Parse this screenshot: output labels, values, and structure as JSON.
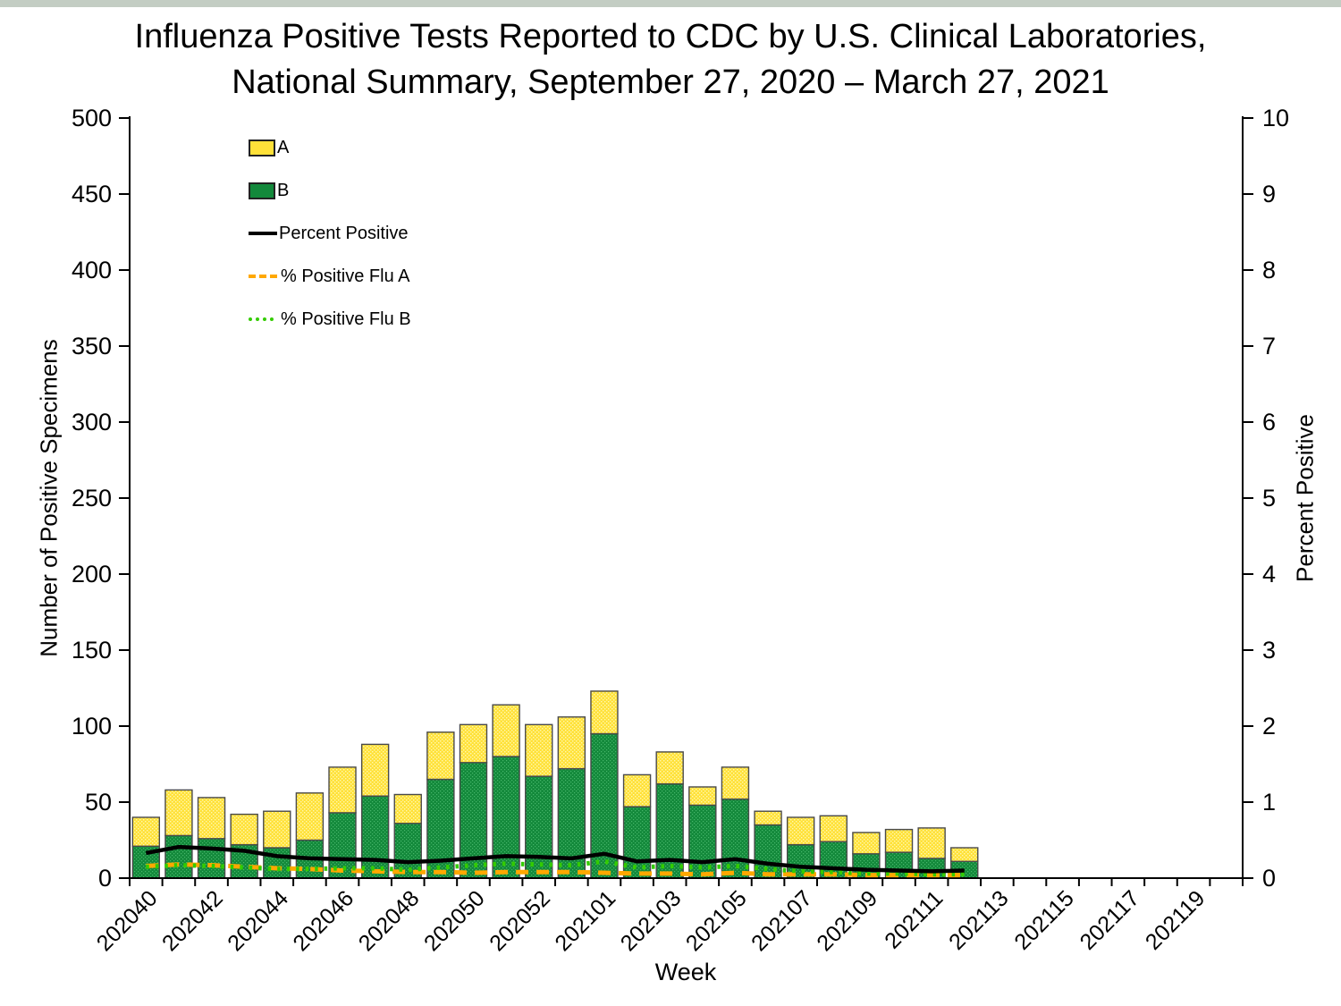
{
  "title": {
    "line1": "Influenza Positive Tests Reported to CDC by U.S. Clinical Laboratories,",
    "line2": "National Summary, September 27, 2020 – March 27, 2021"
  },
  "axes": {
    "y_left_title": "Number of Positive Specimens",
    "y_right_title": "Percent Positive",
    "x_title": "Week",
    "y_left_min": 0,
    "y_left_max": 500,
    "y_left_step": 50,
    "y_right_min": 0,
    "y_right_max": 10,
    "y_right_step": 1
  },
  "legend": {
    "items": [
      {
        "label": "A",
        "swatch": "bar-a"
      },
      {
        "label": "B",
        "swatch": "bar-b"
      },
      {
        "label": "Percent Positive",
        "swatch": "line-black"
      },
      {
        "label": "% Positive Flu A",
        "swatch": "line-orange-dashed"
      },
      {
        "label": "% Positive Flu B",
        "swatch": "line-green-dotted"
      }
    ]
  },
  "colors": {
    "flu_a_bar": "#FFE139",
    "flu_a_bar_dot": "#FFF9B1",
    "flu_b_bar": "#13893B",
    "flu_b_bar_dot": "#46B66B",
    "bar_border": "#4a4a4a",
    "percent_positive_line": "#000000",
    "pct_flu_a_line": "#FFA800",
    "pct_flu_b_line": "#33CC00",
    "axis": "#000000",
    "top_strip": "#c3cdc3"
  },
  "chart_data": {
    "type": "bar",
    "subtype": "stacked-bars-with-percent-lines",
    "categories": [
      "202040",
      "202041",
      "202042",
      "202043",
      "202044",
      "202045",
      "202046",
      "202047",
      "202048",
      "202049",
      "202050",
      "202051",
      "202052",
      "202053",
      "202101",
      "202102",
      "202103",
      "202104",
      "202105",
      "202106",
      "202107",
      "202108",
      "202109",
      "202110",
      "202111",
      "202112"
    ],
    "series": [
      {
        "name": "A",
        "type": "bar",
        "stack": "specimens",
        "axis": "left",
        "values": [
          19,
          30,
          27,
          20,
          24,
          31,
          30,
          34,
          19,
          31,
          25,
          34,
          34,
          34,
          28,
          21,
          21,
          12,
          21,
          9,
          18,
          17,
          14,
          15,
          20,
          9
        ]
      },
      {
        "name": "B",
        "type": "bar",
        "stack": "specimens",
        "axis": "left",
        "values": [
          21,
          28,
          26,
          22,
          20,
          25,
          43,
          54,
          36,
          65,
          76,
          80,
          67,
          72,
          95,
          47,
          62,
          48,
          52,
          35,
          22,
          24,
          16,
          17,
          13,
          11
        ]
      },
      {
        "name": "Percent Positive",
        "type": "line",
        "style": "solid",
        "axis": "right",
        "values": [
          0.33,
          0.41,
          0.39,
          0.36,
          0.29,
          0.26,
          0.25,
          0.24,
          0.21,
          0.23,
          0.26,
          0.29,
          0.28,
          0.26,
          0.32,
          0.22,
          0.24,
          0.21,
          0.25,
          0.19,
          0.15,
          0.13,
          0.11,
          0.1,
          0.09,
          0.1
        ]
      },
      {
        "name": "% Positive Flu A",
        "type": "line",
        "style": "dashed",
        "axis": "right",
        "values": [
          0.16,
          0.18,
          0.17,
          0.15,
          0.13,
          0.12,
          0.1,
          0.09,
          0.08,
          0.08,
          0.07,
          0.08,
          0.08,
          0.08,
          0.07,
          0.06,
          0.06,
          0.05,
          0.07,
          0.05,
          0.05,
          0.05,
          0.04,
          0.04,
          0.04,
          0.04
        ]
      },
      {
        "name": "% Positive Flu B",
        "type": "line",
        "style": "dotted",
        "axis": "right",
        "values": [
          0.15,
          0.17,
          0.16,
          0.14,
          0.12,
          0.12,
          0.13,
          0.13,
          0.11,
          0.14,
          0.17,
          0.19,
          0.18,
          0.17,
          0.22,
          0.14,
          0.16,
          0.14,
          0.16,
          0.12,
          0.09,
          0.08,
          0.06,
          0.06,
          0.05,
          0.05
        ]
      }
    ],
    "x_axis": {
      "total_slots": 34,
      "tick_labels": [
        {
          "slot": 0,
          "text": "202040"
        },
        {
          "slot": 2,
          "text": "202042"
        },
        {
          "slot": 4,
          "text": "202044"
        },
        {
          "slot": 6,
          "text": "202046"
        },
        {
          "slot": 8,
          "text": "202048"
        },
        {
          "slot": 10,
          "text": "202050"
        },
        {
          "slot": 12,
          "text": "202052"
        },
        {
          "slot": 14,
          "text": "202101"
        },
        {
          "slot": 16,
          "text": "202103"
        },
        {
          "slot": 18,
          "text": "202105"
        },
        {
          "slot": 20,
          "text": "202107"
        },
        {
          "slot": 22,
          "text": "202109"
        },
        {
          "slot": 24,
          "text": "202111"
        },
        {
          "slot": 26,
          "text": "202113"
        },
        {
          "slot": 28,
          "text": "202115"
        },
        {
          "slot": 30,
          "text": "202117"
        },
        {
          "slot": 32,
          "text": "202119"
        }
      ]
    },
    "ylim_left": [
      0,
      500
    ],
    "ylim_right": [
      0,
      10
    ],
    "grid": false,
    "legend_position": "upper-left-inside"
  }
}
